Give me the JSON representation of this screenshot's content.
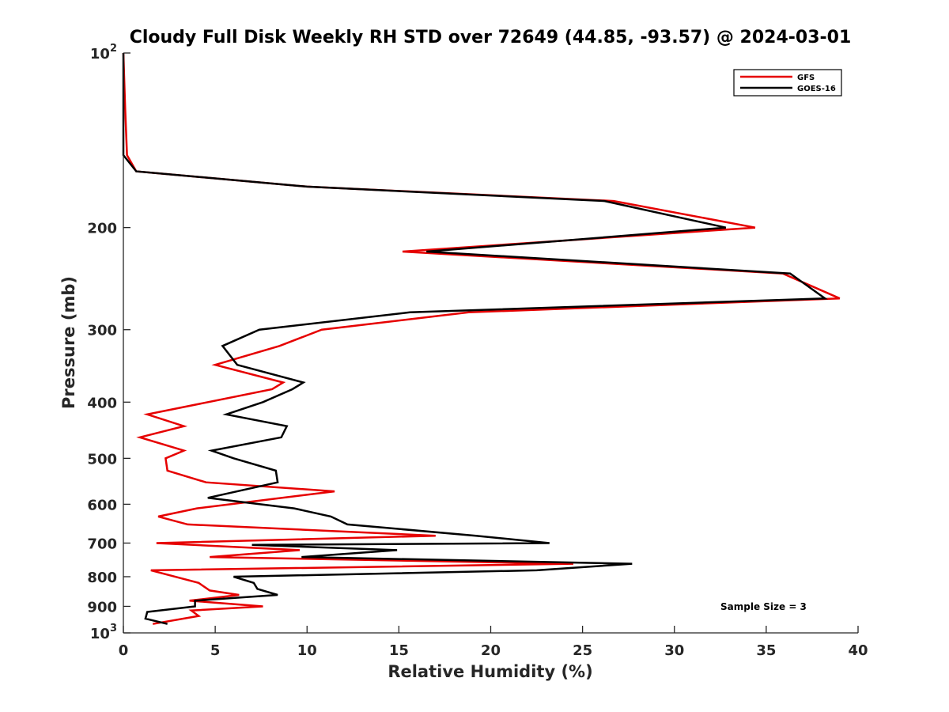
{
  "chart_data": {
    "type": "line",
    "title": "Cloudy Full Disk Weekly RH STD over 72649 (44.85, -93.57) @ 2024-03-01",
    "xlabel": "Relative Humidity (%)",
    "ylabel": "Pressure (mb)",
    "xlim": [
      0,
      40
    ],
    "ylim": [
      100,
      1000
    ],
    "y_scale": "log",
    "y_reversed": true,
    "x_ticks": [
      0,
      5,
      10,
      15,
      20,
      25,
      30,
      35,
      40
    ],
    "x_tick_labels": [
      "0",
      "5",
      "10",
      "15",
      "20",
      "25",
      "30",
      "35",
      "40"
    ],
    "y_ticks": [
      100,
      200,
      300,
      400,
      500,
      600,
      700,
      800,
      900,
      1000
    ],
    "y_tick_labels": [
      {
        "base": "10",
        "exp": "2"
      },
      {
        "base": "200",
        "exp": ""
      },
      {
        "base": "300",
        "exp": ""
      },
      {
        "base": "400",
        "exp": ""
      },
      {
        "base": "500",
        "exp": ""
      },
      {
        "base": "600",
        "exp": ""
      },
      {
        "base": "700",
        "exp": ""
      },
      {
        "base": "800",
        "exp": ""
      },
      {
        "base": "900",
        "exp": ""
      },
      {
        "base": "10",
        "exp": "3"
      }
    ],
    "grid": false,
    "legend_position": "top-right",
    "annotation": "Sample Size = 3",
    "series": [
      {
        "name": "GFS",
        "color": "#e60000",
        "points": [
          {
            "x": 0.0,
            "p": 100
          },
          {
            "x": 0.1,
            "p": 125
          },
          {
            "x": 0.2,
            "p": 150
          },
          {
            "x": 0.7,
            "p": 160
          },
          {
            "x": 10.0,
            "p": 170
          },
          {
            "x": 26.7,
            "p": 180
          },
          {
            "x": 34.4,
            "p": 200
          },
          {
            "x": 15.2,
            "p": 220
          },
          {
            "x": 35.9,
            "p": 240
          },
          {
            "x": 39.0,
            "p": 265
          },
          {
            "x": 18.8,
            "p": 280
          },
          {
            "x": 10.8,
            "p": 300
          },
          {
            "x": 8.5,
            "p": 320
          },
          {
            "x": 5.0,
            "p": 345
          },
          {
            "x": 8.7,
            "p": 370
          },
          {
            "x": 8.1,
            "p": 380
          },
          {
            "x": 1.3,
            "p": 420
          },
          {
            "x": 3.3,
            "p": 440
          },
          {
            "x": 0.9,
            "p": 460
          },
          {
            "x": 3.3,
            "p": 485
          },
          {
            "x": 2.3,
            "p": 500
          },
          {
            "x": 2.4,
            "p": 525
          },
          {
            "x": 4.5,
            "p": 550
          },
          {
            "x": 11.5,
            "p": 570
          },
          {
            "x": 4.0,
            "p": 610
          },
          {
            "x": 1.9,
            "p": 630
          },
          {
            "x": 3.5,
            "p": 650
          },
          {
            "x": 17.0,
            "p": 680
          },
          {
            "x": 1.8,
            "p": 700
          },
          {
            "x": 9.6,
            "p": 720
          },
          {
            "x": 4.7,
            "p": 740
          },
          {
            "x": 24.5,
            "p": 760
          },
          {
            "x": 1.5,
            "p": 780
          },
          {
            "x": 4.1,
            "p": 820
          },
          {
            "x": 4.7,
            "p": 845
          },
          {
            "x": 6.3,
            "p": 860
          },
          {
            "x": 3.6,
            "p": 880
          },
          {
            "x": 7.6,
            "p": 900
          },
          {
            "x": 3.7,
            "p": 915
          },
          {
            "x": 4.1,
            "p": 935
          },
          {
            "x": 1.6,
            "p": 965
          }
        ]
      },
      {
        "name": "GOES-16",
        "color": "#000000",
        "points": [
          {
            "x": 0.0,
            "p": 100
          },
          {
            "x": 0.0,
            "p": 125
          },
          {
            "x": 0.0,
            "p": 150
          },
          {
            "x": 0.7,
            "p": 160
          },
          {
            "x": 10.0,
            "p": 170
          },
          {
            "x": 26.2,
            "p": 180
          },
          {
            "x": 32.8,
            "p": 200
          },
          {
            "x": 16.5,
            "p": 220
          },
          {
            "x": 36.3,
            "p": 240
          },
          {
            "x": 38.2,
            "p": 265
          },
          {
            "x": 15.6,
            "p": 280
          },
          {
            "x": 7.4,
            "p": 300
          },
          {
            "x": 5.4,
            "p": 320
          },
          {
            "x": 6.2,
            "p": 345
          },
          {
            "x": 9.8,
            "p": 370
          },
          {
            "x": 9.2,
            "p": 380
          },
          {
            "x": 7.6,
            "p": 400
          },
          {
            "x": 5.6,
            "p": 420
          },
          {
            "x": 8.9,
            "p": 440
          },
          {
            "x": 8.6,
            "p": 460
          },
          {
            "x": 4.8,
            "p": 485
          },
          {
            "x": 6.0,
            "p": 500
          },
          {
            "x": 8.3,
            "p": 525
          },
          {
            "x": 8.4,
            "p": 550
          },
          {
            "x": 4.6,
            "p": 585
          },
          {
            "x": 9.3,
            "p": 610
          },
          {
            "x": 11.3,
            "p": 630
          },
          {
            "x": 12.2,
            "p": 650
          },
          {
            "x": 19.2,
            "p": 680
          },
          {
            "x": 23.2,
            "p": 700
          },
          {
            "x": 7.0,
            "p": 705
          },
          {
            "x": 14.9,
            "p": 720
          },
          {
            "x": 9.7,
            "p": 740
          },
          {
            "x": 27.7,
            "p": 760
          },
          {
            "x": 22.5,
            "p": 780
          },
          {
            "x": 6.0,
            "p": 800
          },
          {
            "x": 7.1,
            "p": 820
          },
          {
            "x": 7.3,
            "p": 840
          },
          {
            "x": 8.4,
            "p": 860
          },
          {
            "x": 3.9,
            "p": 880
          },
          {
            "x": 3.9,
            "p": 900
          },
          {
            "x": 1.3,
            "p": 920
          },
          {
            "x": 1.2,
            "p": 945
          },
          {
            "x": 2.4,
            "p": 965
          }
        ]
      }
    ]
  }
}
